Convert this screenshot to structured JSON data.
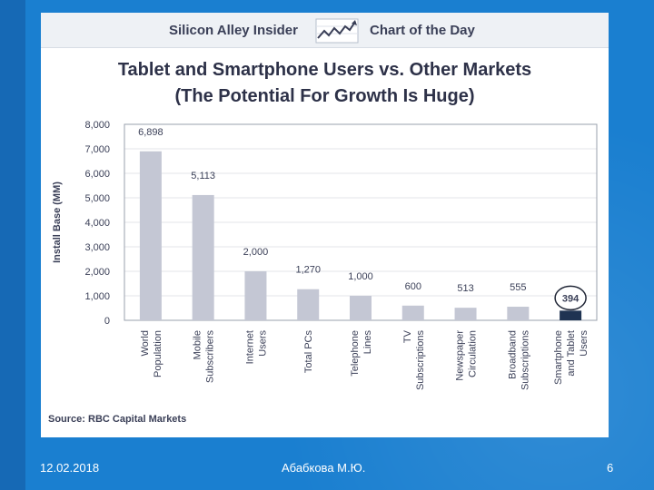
{
  "banner": {
    "left_text": "Silicon Alley Insider",
    "right_text": "Chart of the Day"
  },
  "chart_data": {
    "type": "bar",
    "title": "Tablet and Smartphone Users vs. Other Markets",
    "subtitle": "(The Potential For Growth Is Huge)",
    "ylabel": "Install Base (MM)",
    "xlabel": "",
    "ylim": [
      0,
      8000
    ],
    "yticks": [
      "0",
      "1,000",
      "2,000",
      "3,000",
      "4,000",
      "5,000",
      "6,000",
      "7,000",
      "8,000"
    ],
    "categories": [
      [
        "World",
        "Population"
      ],
      [
        "Mobile",
        "Subscribers"
      ],
      [
        "Internet",
        "Users"
      ],
      [
        "Total PCs"
      ],
      [
        "Telephone",
        "Lines"
      ],
      [
        "TV",
        "Subscriptions"
      ],
      [
        "Newspaper",
        "Circulation"
      ],
      [
        "Broadband",
        "Subscriptions"
      ],
      [
        "Smartphone",
        "and Tablet",
        "Users"
      ]
    ],
    "values": [
      6898,
      5113,
      2000,
      1270,
      1000,
      600,
      513,
      555,
      394
    ],
    "value_labels": [
      "6,898",
      "5,113",
      "2,000",
      "1,270",
      "1,000",
      "600",
      "513",
      "555",
      "394"
    ],
    "highlight_index": 8,
    "colors": {
      "bar": "#c4c7d4",
      "highlight": "#1f3352",
      "grid": "#e3e5ea",
      "text": "#3a3f57"
    },
    "source": "Source: RBC Capital Markets"
  },
  "footer": {
    "date": "12.02.2018",
    "author": "Абабкова М.Ю.",
    "page": "6"
  }
}
